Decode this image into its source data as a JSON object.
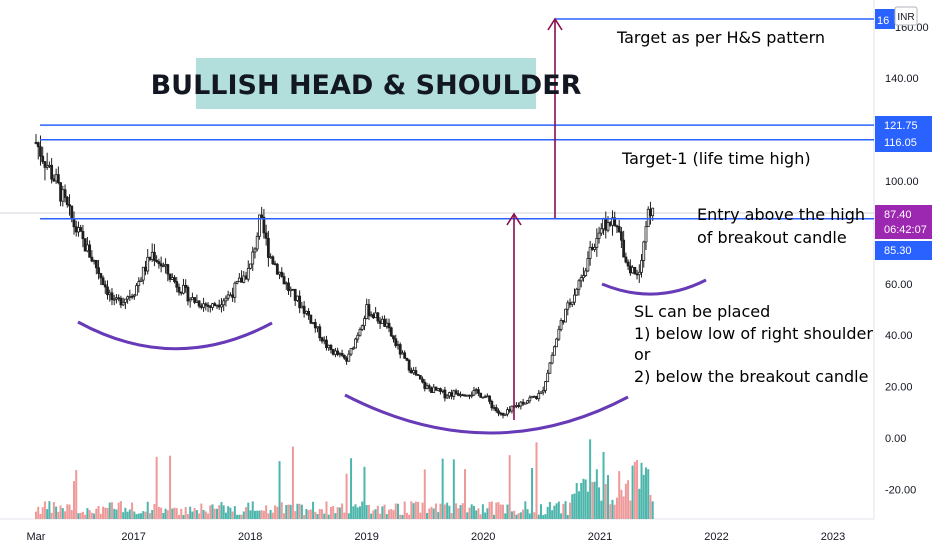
{
  "colors": {
    "background": "#ffffff",
    "candle": "#1e1e1e",
    "level_line": "#2962ff",
    "arrow": "#880e4f",
    "curve": "#673ab7",
    "vol_up": "#4db6ac",
    "vol_down": "#ef9a9a",
    "title_bg": "#b2dfdb",
    "price_badge": "#9c27b0",
    "level_badge": "#2962ff"
  },
  "title_box": {
    "text": "BULLISH HEAD & SHOULDER"
  },
  "annotations": {
    "target_hs": "Target as per H&S pattern",
    "target_1": "Target-1 (life time high)",
    "entry_line1": "Entry above the high",
    "entry_line2": "of breakout candle",
    "sl_line1": "SL can be placed",
    "sl_line2": "1) below low of right shoulder",
    "sl_line3": "or",
    "sl_line4": "2) below the breakout candle"
  },
  "price_axis": {
    "currency": "INR",
    "top_badge": "16",
    "top_tick_partial": "160.00",
    "current_price": "87.40",
    "countdown": "06:42:07",
    "badges": [
      "121.75",
      "116.05",
      "85.30"
    ]
  },
  "chart_data": {
    "type": "candlestick",
    "y_ticks": [
      "160.00",
      "140.00",
      "100.00",
      "60.00",
      "40.00",
      "20.00",
      "0.00",
      "-20.00"
    ],
    "x_ticks": [
      "Mar",
      "2017",
      "2018",
      "2019",
      "2020",
      "2021",
      "2022",
      "2023"
    ],
    "ylim": [
      -33,
      168
    ],
    "levels": [
      121.75,
      116.05,
      85.3,
      162
    ],
    "series": [
      {
        "dates": [
          "2016-03",
          "2016-05",
          "2016-07",
          "2016-09",
          "2016-11",
          "2017-01",
          "2017-03",
          "2017-05",
          "2017-07",
          "2017-09",
          "2017-11",
          "2018-01",
          "2018-02",
          "2018-03",
          "2018-05",
          "2018-07",
          "2018-09",
          "2018-11",
          "2019-01",
          "2019-03",
          "2019-05",
          "2019-07",
          "2019-09",
          "2019-11",
          "2020-01",
          "2020-03",
          "2020-05",
          "2020-07",
          "2020-09",
          "2020-11",
          "2021-01",
          "2021-02",
          "2021-03",
          "2021-04",
          "2021-05",
          "2021-06"
        ],
        "close": [
          115,
          100,
          82,
          68,
          52,
          57,
          72,
          62,
          54,
          51,
          56,
          66,
          85,
          72,
          58,
          48,
          35,
          30,
          50,
          44,
          30,
          20,
          17,
          18,
          17,
          8,
          14,
          17,
          45,
          62,
          82,
          84,
          80,
          66,
          64,
          87.4
        ]
      }
    ]
  }
}
